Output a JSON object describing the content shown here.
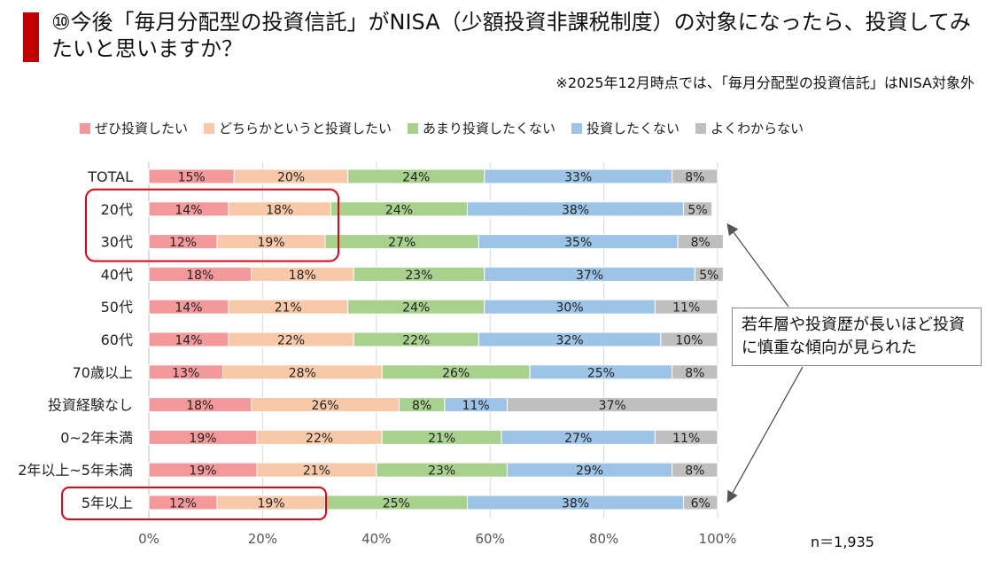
{
  "header": {
    "title": "⑩今後「毎月分配型の投資信託」がNISA（少額投資非課税制度）の対象になったら、投資してみたいと思いますか？",
    "note": "※2025年12月時点では、「毎月分配型の投資信託」はNISA対象外"
  },
  "legend": [
    {
      "label": "ぜひ投資したい",
      "color": "#f4999b"
    },
    {
      "label": "どちらかというと投資したい",
      "color": "#f7c9a8"
    },
    {
      "label": "あまり投資したくない",
      "color": "#a9d18e"
    },
    {
      "label": "投資したくない",
      "color": "#9dc3e6"
    },
    {
      "label": "よくわからない",
      "color": "#bfbfbf"
    }
  ],
  "callout": {
    "text": "若年層や投資歴が長いほど投資に慎重な傾向が見られた"
  },
  "sample": {
    "text": "n＝1,935"
  },
  "chart_data": {
    "type": "bar",
    "orientation": "horizontal",
    "stacked": true,
    "categories": [
      "TOTAL",
      "20代",
      "30代",
      "40代",
      "50代",
      "60代",
      "70歳以上",
      "投資経験なし",
      "0~2年未満",
      "2年以上~5年未満",
      "5年以上"
    ],
    "series": [
      {
        "name": "ぜひ投資したい",
        "color": "#f4999b",
        "values": [
          15,
          14,
          12,
          18,
          14,
          14,
          13,
          18,
          19,
          19,
          12
        ]
      },
      {
        "name": "どちらかというと投資したい",
        "color": "#f7c9a8",
        "values": [
          20,
          18,
          19,
          18,
          21,
          22,
          28,
          26,
          22,
          21,
          19
        ]
      },
      {
        "name": "あまり投資したくない",
        "color": "#a9d18e",
        "values": [
          24,
          24,
          27,
          23,
          24,
          22,
          26,
          8,
          21,
          23,
          25
        ]
      },
      {
        "name": "投資したくない",
        "color": "#9dc3e6",
        "values": [
          33,
          38,
          35,
          37,
          30,
          32,
          25,
          11,
          27,
          29,
          38
        ]
      },
      {
        "name": "よくわからない",
        "color": "#bfbfbf",
        "values": [
          8,
          5,
          8,
          5,
          11,
          10,
          8,
          37,
          11,
          8,
          6
        ]
      }
    ],
    "xlim": [
      0,
      100
    ],
    "xticks": [
      "0%",
      "20%",
      "40%",
      "60%",
      "80%",
      "100%"
    ],
    "grid": true,
    "legend_position": "top",
    "highlighted_categories": [
      "20代",
      "30代",
      "5年以上"
    ]
  }
}
